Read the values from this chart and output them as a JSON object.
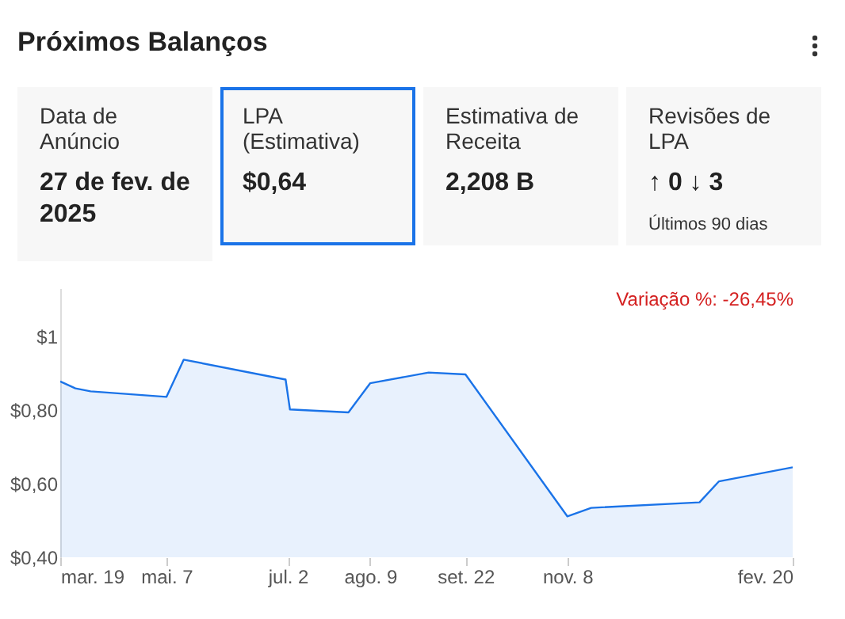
{
  "chart_data": [
    {
      "type": "other",
      "title": "Próximos Balanços",
      "categories": [
        "Data de Anúncio",
        "LPA (Estimativa)",
        "Estimativa de Receita",
        "Revisões de LPA"
      ],
      "value_labels": [
        "27 de fev. de 2025",
        "$0,64",
        "2,208 B",
        "↑ 0  ↓ 3"
      ],
      "annotations": [
        "Últimos 90 dias"
      ]
    },
    {
      "type": "area",
      "annotations": [
        "Variação %: -26,45%"
      ],
      "x": [
        "2024-03-19",
        "2024-03-26",
        "2024-04-02",
        "2024-05-07",
        "2024-05-15",
        "2024-07-01",
        "2024-07-03",
        "2024-07-30",
        "2024-08-09",
        "2024-09-05",
        "2024-09-22",
        "2024-11-08",
        "2024-11-19",
        "2025-01-08",
        "2025-01-17",
        "2025-02-20"
      ],
      "series": [
        {
          "color": "#1a73e8",
          "values": [
            0.877,
            0.858,
            0.85,
            0.835,
            0.936,
            0.882,
            0.801,
            0.793,
            0.872,
            0.901,
            0.896,
            0.511,
            0.534,
            0.549,
            0.606,
            0.644
          ]
        }
      ],
      "xlim": [
        "2024-03-19",
        "2025-02-20"
      ],
      "xticks": [
        {
          "value": "2024-03-19",
          "label": "mar. 19"
        },
        {
          "value": "2024-05-07",
          "label": "mai. 7"
        },
        {
          "value": "2024-07-02",
          "label": "jul. 2"
        },
        {
          "value": "2024-08-09",
          "label": "ago. 9"
        },
        {
          "value": "2024-09-22",
          "label": "set. 22"
        },
        {
          "value": "2024-11-08",
          "label": "nov. 8"
        },
        {
          "value": "2025-02-20",
          "label": "fev. 20"
        }
      ],
      "ylim": [
        0.4,
        1.13
      ],
      "yticks": [
        {
          "value": 0.4,
          "label": "$0,40"
        },
        {
          "value": 0.6,
          "label": "$0,60"
        },
        {
          "value": 0.8,
          "label": "$0,80"
        },
        {
          "value": 1,
          "label": "$1"
        }
      ],
      "grid": false,
      "legend": false
    }
  ]
}
